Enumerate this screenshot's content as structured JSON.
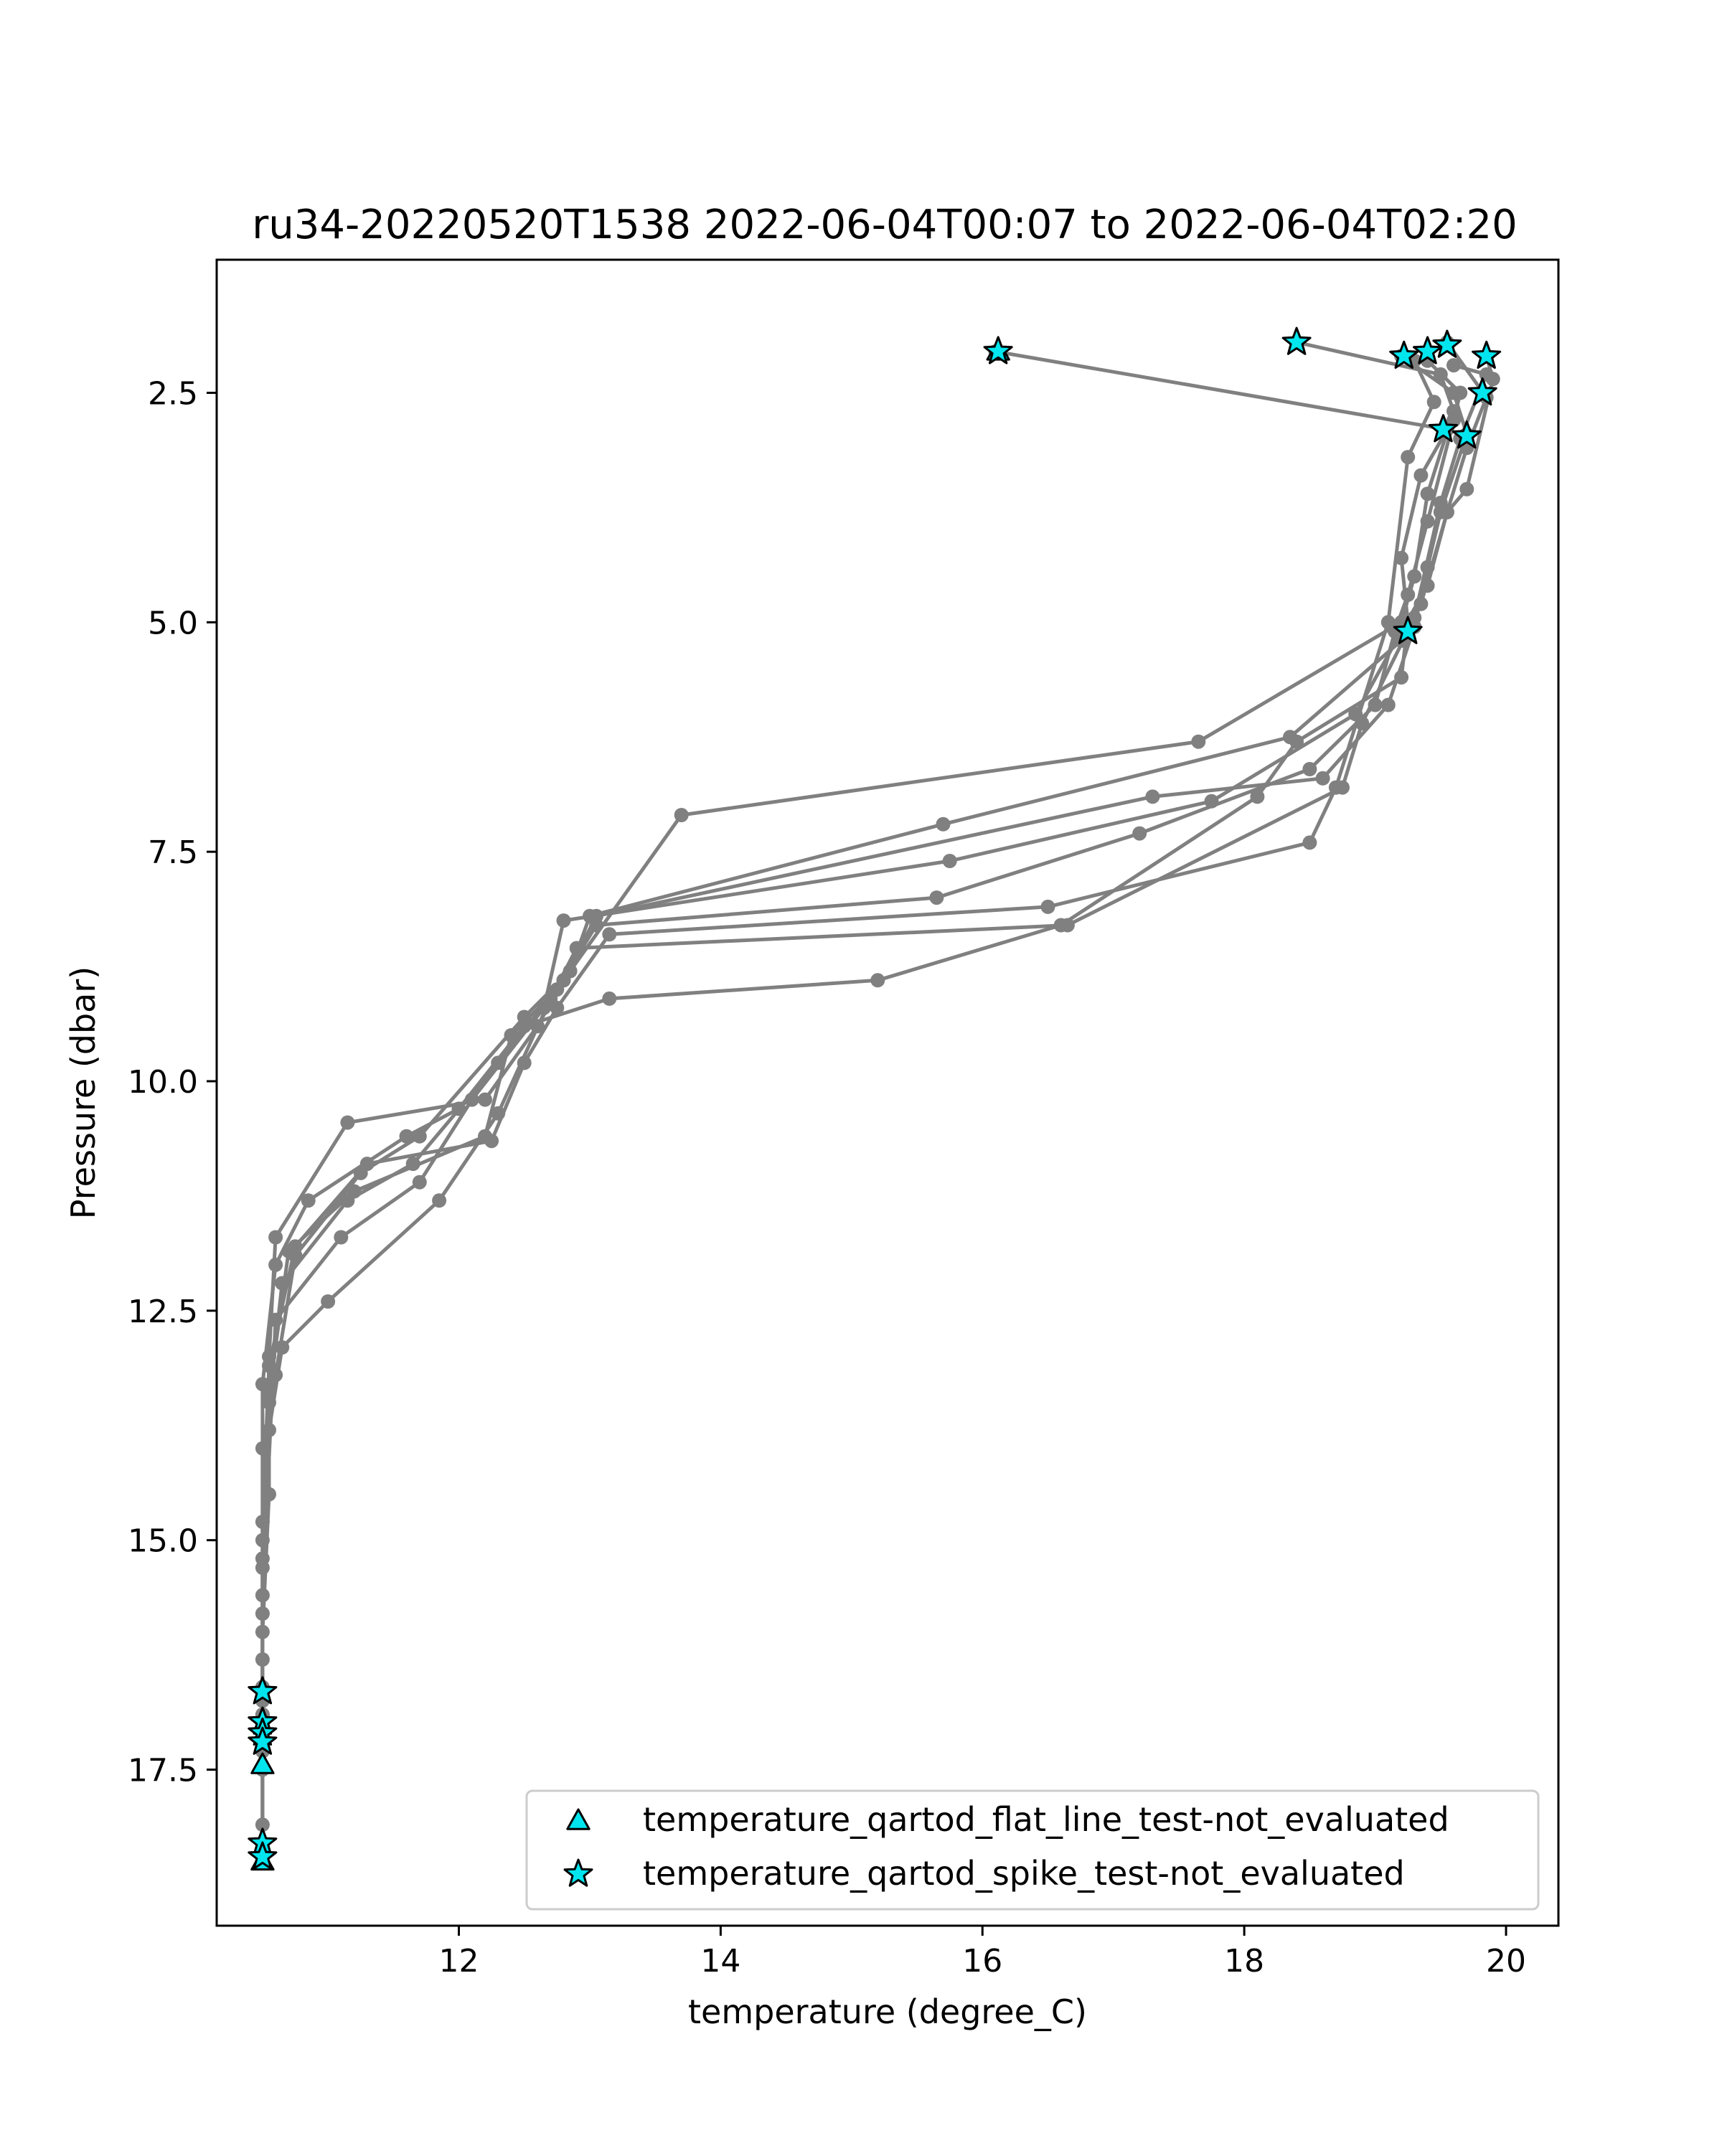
{
  "chart_data": {
    "type": "scatter",
    "title": "ru34-20220520T1538 2022-06-04T00:07 to 2022-06-04T02:20",
    "xlabel": "temperature (degree_C)",
    "ylabel": "Pressure (dbar)",
    "xlim": [
      10.15,
      20.4
    ],
    "ylim": [
      19.2,
      1.05
    ],
    "y_inverted": true,
    "xticks": [
      12,
      14,
      16,
      18,
      20
    ],
    "yticks": [
      2.5,
      5.0,
      7.5,
      10.0,
      12.5,
      15.0,
      17.5
    ],
    "xtick_labels": [
      "12",
      "14",
      "16",
      "18",
      "20"
    ],
    "ytick_labels": [
      "2.5",
      "5.0",
      "7.5",
      "10.0",
      "12.5",
      "15.0",
      "17.5"
    ],
    "grid": false,
    "legend_position": "lower-right",
    "colors": {
      "profile": "#808080",
      "flag_fill": "#00e5ee",
      "flag_edge": "#000000"
    },
    "profiles": [
      {
        "temperature": [
          16.1,
          19.55,
          19.35,
          19.2,
          19.25,
          19.2,
          18.4,
          18.1,
          16.6,
          15.2,
          13.15,
          12.5,
          12.0,
          11.6,
          10.85,
          10.6,
          10.5,
          10.5,
          10.5,
          10.5,
          10.5
        ],
        "pressure": [
          2.05,
          2.9,
          3.4,
          4.3,
          5.0,
          5.6,
          6.3,
          6.9,
          8.3,
          8.9,
          9.1,
          9.4,
          10.3,
          10.6,
          11.3,
          12.0,
          13.3,
          15.0,
          16.7,
          17.5,
          18.5
        ]
      },
      {
        "temperature": [
          18.4,
          19.5,
          19.6,
          19.4,
          19.3,
          19.2,
          17.65,
          13.7,
          12.8,
          12.6,
          12.2,
          11.15,
          10.6,
          10.55,
          10.55,
          10.5,
          10.5
        ],
        "pressure": [
          1.95,
          2.3,
          2.7,
          3.6,
          4.5,
          5.0,
          6.3,
          7.1,
          8.9,
          9.4,
          10.2,
          10.45,
          11.7,
          13.0,
          14.5,
          16.0,
          16.9
        ]
      },
      {
        "temperature": [
          19.2,
          19.6,
          19.7,
          19.5,
          19.4,
          19.3,
          19.1,
          18.6,
          17.3,
          13.05,
          12.8,
          12.3,
          11.65,
          11.15,
          10.65,
          10.55,
          10.5,
          10.5,
          10.5
        ],
        "pressure": [
          2.1,
          2.5,
          2.95,
          3.8,
          4.4,
          5.05,
          5.9,
          6.7,
          6.9,
          8.2,
          8.9,
          9.8,
          10.9,
          11.3,
          12.2,
          13.5,
          15.3,
          16.9,
          17.0
        ]
      },
      {
        "temperature": [
          19.55,
          19.85,
          19.7,
          19.55,
          19.35,
          19.2,
          18.35,
          15.7,
          13.0,
          12.85,
          12.5,
          11.7,
          11.25,
          10.75,
          10.6,
          10.5,
          10.5,
          10.5
        ],
        "pressure": [
          1.95,
          2.55,
          3.1,
          3.8,
          4.8,
          5.2,
          6.25,
          7.2,
          8.2,
          8.8,
          9.3,
          10.6,
          11.0,
          11.9,
          13.2,
          14.0,
          16.3,
          17.2
        ]
      },
      {
        "temperature": [
          19.85,
          19.9,
          19.7,
          19.55,
          19.4,
          19.2,
          18.85,
          17.75,
          15.75,
          12.8,
          12.65,
          12.1,
          11.7,
          11.1,
          10.6,
          10.5,
          10.5,
          10.5
        ],
        "pressure": [
          2.1,
          2.35,
          3.55,
          3.8,
          4.6,
          5.1,
          6.0,
          6.95,
          7.6,
          8.25,
          9.2,
          10.2,
          11.1,
          11.7,
          12.6,
          15.6,
          17.3,
          18.45
        ]
      },
      {
        "temperature": [
          19.4,
          19.65,
          19.6,
          19.4,
          19.25,
          19.15,
          19.0,
          18.5,
          17.2,
          15.65,
          13.05,
          12.75,
          12.4,
          12.2,
          11.2,
          10.7,
          10.55,
          10.5,
          10.5,
          10.5
        ],
        "pressure": [
          2.15,
          2.5,
          2.8,
          3.9,
          4.7,
          5.1,
          5.9,
          6.6,
          7.3,
          8.0,
          8.3,
          9.0,
          9.5,
          10.6,
          11.2,
          11.85,
          13.4,
          15.2,
          17.1,
          18.35
        ]
      },
      {
        "temperature": [
          19.6,
          19.85,
          19.65,
          19.5,
          19.3,
          18.9,
          18.75,
          16.65,
          12.9,
          12.7,
          12.3,
          11.85,
          11.0,
          10.65,
          10.55,
          10.5,
          10.5,
          10.5
        ],
        "pressure": [
          2.2,
          2.3,
          3.0,
          3.7,
          4.95,
          6.1,
          6.8,
          8.3,
          8.55,
          9.1,
          10.35,
          11.3,
          12.4,
          12.9,
          13.8,
          15.8,
          16.75,
          18.5
        ]
      },
      {
        "temperature": [
          19.3,
          19.45,
          19.25,
          19.1,
          18.7,
          18.5,
          16.5,
          13.15,
          12.75,
          12.5,
          12.25,
          11.3,
          10.75,
          10.55,
          10.5,
          10.5,
          10.5
        ],
        "pressure": [
          2.15,
          2.6,
          3.2,
          5.0,
          6.8,
          7.4,
          8.1,
          8.4,
          9.2,
          9.8,
          10.65,
          10.9,
          11.8,
          13.1,
          14.8,
          16.6,
          18.1
        ]
      }
    ],
    "series": [
      {
        "name": "temperature_qartod_flat_line_test-not_evaluated",
        "marker": "triangle",
        "x": [
          16.12,
          10.5,
          10.5
        ],
        "y": [
          2.05,
          17.45,
          18.5
        ]
      },
      {
        "name": "temperature_qartod_spike_test-not_evaluated",
        "marker": "star",
        "x": [
          16.12,
          18.4,
          19.22,
          19.4,
          19.55,
          19.85,
          19.82,
          19.52,
          19.7,
          19.25,
          10.5,
          10.5,
          10.5,
          10.5,
          10.5,
          10.5
        ],
        "y": [
          2.05,
          1.95,
          2.1,
          2.05,
          1.98,
          2.1,
          2.5,
          2.9,
          2.97,
          5.1,
          16.65,
          16.98,
          17.1,
          17.2,
          18.3,
          18.45
        ]
      }
    ]
  }
}
